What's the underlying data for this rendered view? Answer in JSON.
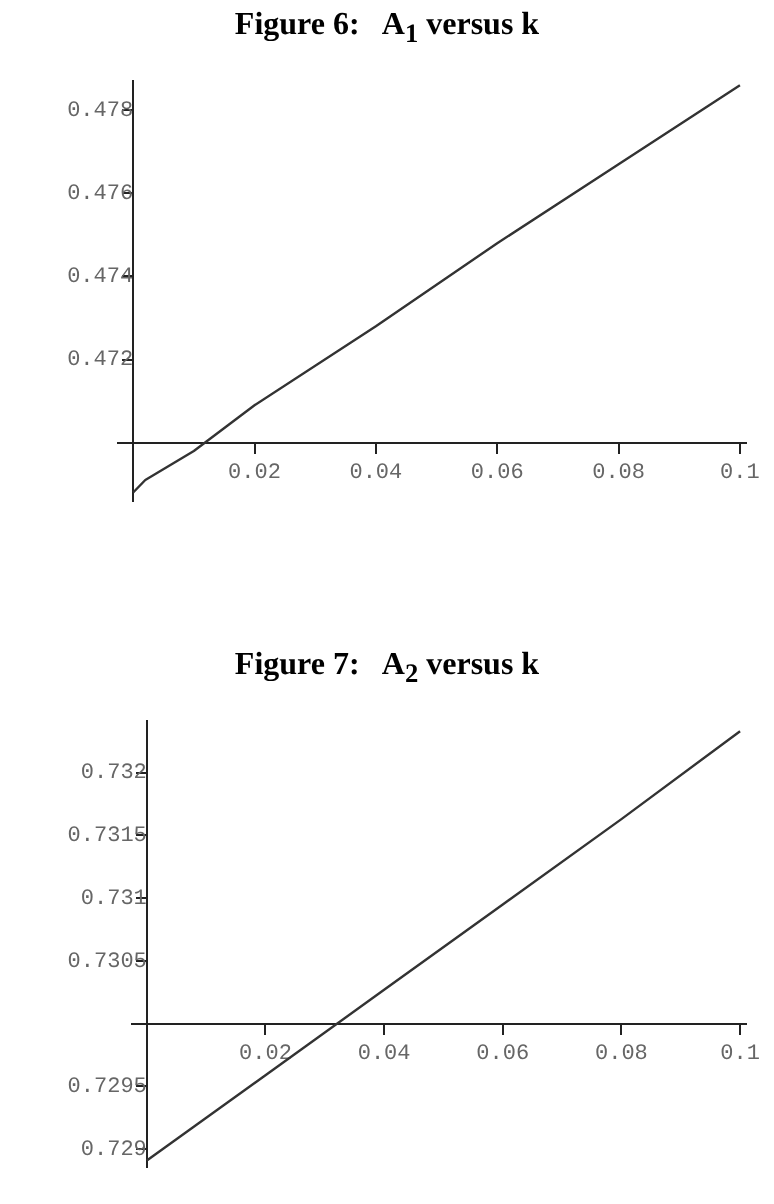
{
  "chart_data": [
    {
      "type": "line",
      "title": "Figure 6:   A$_{1}$ versus k",
      "x": [
        0,
        0.002,
        0.01,
        0.02,
        0.04,
        0.06,
        0.08,
        0.1
      ],
      "series": [
        {
          "color": "#333333",
          "values": [
            0.4688,
            0.4691,
            0.4698,
            0.4709,
            0.4728,
            0.4748,
            0.4767,
            0.4786
          ]
        }
      ],
      "xlim": [
        -0.0025,
        0.101
      ],
      "ylim": [
        0.4686,
        0.4787
      ],
      "xticks": [
        {
          "value": 0,
          "label": null
        },
        0.02,
        0.04,
        0.06,
        0.08,
        0.1
      ],
      "yticks": [
        {
          "value": 0.47,
          "label": null
        },
        0.472,
        0.474,
        0.476,
        0.478
      ],
      "grid": false,
      "legend": false,
      "marker": "none",
      "line_style": "solid"
    },
    {
      "type": "line",
      "title": "Figure 7:   A$_{2}$ versus k",
      "x": [
        0,
        0.02,
        0.04,
        0.06,
        0.08,
        0.1
      ],
      "series": [
        {
          "color": "#333333",
          "values": [
            0.72891,
            0.72959,
            0.73027,
            0.73095,
            0.73163,
            0.73233
          ]
        }
      ],
      "xlim": [
        -0.0025,
        0.101
      ],
      "ylim": [
        0.72886,
        0.73241
      ],
      "xticks": [
        {
          "value": 0,
          "label": null
        },
        0.02,
        0.04,
        0.06,
        0.08,
        0.1
      ],
      "yticks": [
        0.729,
        0.7295,
        {
          "value": 0.73,
          "label": null
        },
        0.7305,
        0.731,
        0.7315,
        0.732
      ],
      "grid": false,
      "legend": false,
      "marker": "none",
      "line_style": "solid"
    }
  ]
}
